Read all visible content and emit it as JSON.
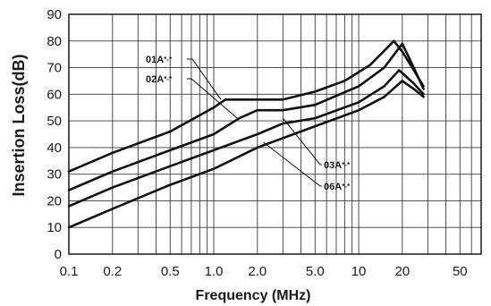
{
  "chart_data": {
    "type": "line",
    "xlabel": "Frequency (MHz)",
    "ylabel": "Insertion Loss(dB)",
    "x_scale": "log",
    "xlim": [
      0.1,
      70
    ],
    "ylim": [
      0,
      90
    ],
    "grid": true,
    "x_ticks": [
      {
        "value": 0.1,
        "label": "0.1"
      },
      {
        "value": 0.2,
        "label": "0.2"
      },
      {
        "value": 0.5,
        "label": "0.5"
      },
      {
        "value": 1.0,
        "label": "1.0"
      },
      {
        "value": 2.0,
        "label": "2.0"
      },
      {
        "value": 5.0,
        "label": "5.0"
      },
      {
        "value": 10,
        "label": "10"
      },
      {
        "value": 20,
        "label": "20"
      },
      {
        "value": 50,
        "label": "50"
      }
    ],
    "y_ticks": [
      0,
      10,
      20,
      30,
      40,
      50,
      60,
      70,
      80,
      90
    ],
    "series": [
      {
        "name": "01A",
        "suffix": "*-*",
        "points": [
          [
            0.1,
            31
          ],
          [
            0.2,
            38
          ],
          [
            0.5,
            46
          ],
          [
            1.0,
            55
          ],
          [
            1.2,
            58
          ],
          [
            2.0,
            58
          ],
          [
            3.0,
            58
          ],
          [
            5.0,
            61
          ],
          [
            8.0,
            65
          ],
          [
            12,
            71
          ],
          [
            17.5,
            80
          ],
          [
            20,
            76
          ],
          [
            24,
            69
          ],
          [
            28,
            63
          ]
        ]
      },
      {
        "name": "02A",
        "suffix": "*-*",
        "points": [
          [
            0.1,
            24
          ],
          [
            0.2,
            31
          ],
          [
            0.5,
            39
          ],
          [
            1.0,
            45
          ],
          [
            1.5,
            51
          ],
          [
            2.0,
            54
          ],
          [
            3.0,
            54
          ],
          [
            5.0,
            56
          ],
          [
            10,
            63
          ],
          [
            15,
            70
          ],
          [
            20,
            79
          ],
          [
            24,
            70
          ],
          [
            28,
            62
          ]
        ]
      },
      {
        "name": "03A",
        "suffix": "*-*",
        "points": [
          [
            0.1,
            18
          ],
          [
            0.2,
            25
          ],
          [
            0.5,
            33
          ],
          [
            1.0,
            39
          ],
          [
            2.0,
            45
          ],
          [
            3.0,
            49
          ],
          [
            5.0,
            51
          ],
          [
            10,
            57
          ],
          [
            15,
            63
          ],
          [
            19,
            69
          ],
          [
            24,
            64
          ],
          [
            28,
            60
          ]
        ]
      },
      {
        "name": "06A",
        "suffix": "*-*",
        "points": [
          [
            0.1,
            10
          ],
          [
            0.2,
            17
          ],
          [
            0.5,
            26
          ],
          [
            1.0,
            32
          ],
          [
            2.0,
            40
          ],
          [
            5.0,
            48
          ],
          [
            10,
            54
          ],
          [
            15,
            59
          ],
          [
            20,
            65
          ],
          [
            24,
            62
          ],
          [
            28,
            59
          ]
        ]
      }
    ]
  }
}
